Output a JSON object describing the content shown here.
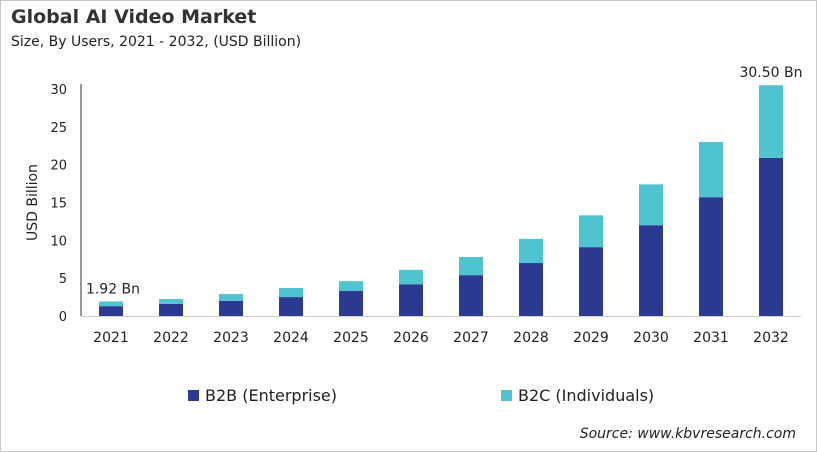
{
  "chart_data": {
    "type": "bar",
    "stacked": true,
    "title": "Global AI Video Market",
    "subtitle": "Size, By Users, 2021 - 2032, (USD Billion)",
    "xlabel": "",
    "ylabel": "USD Billion",
    "ylim": [
      0,
      30
    ],
    "yticks": [
      0,
      5,
      10,
      15,
      20,
      25,
      30
    ],
    "grid": false,
    "legend_position": "bottom",
    "categories": [
      "2021",
      "2022",
      "2023",
      "2024",
      "2025",
      "2026",
      "2027",
      "2028",
      "2029",
      "2030",
      "2031",
      "2032"
    ],
    "series": [
      {
        "name": "B2B (Enterprise)",
        "color": "#2b3990",
        "values": [
          1.3,
          1.6,
          2.0,
          2.5,
          3.3,
          4.2,
          5.4,
          7.0,
          9.1,
          12.0,
          15.7,
          20.9
        ]
      },
      {
        "name": "B2C (Individuals)",
        "color": "#4fc3cf",
        "values": [
          0.62,
          0.65,
          0.9,
          1.2,
          1.3,
          1.9,
          2.4,
          3.2,
          4.2,
          5.4,
          7.3,
          9.6
        ]
      }
    ],
    "annotations": [
      {
        "category": "2021",
        "text": "1.92 Bn"
      },
      {
        "category": "2032",
        "text": "30.50 Bn"
      }
    ]
  },
  "source": "Source: www.kbvresearch.com"
}
